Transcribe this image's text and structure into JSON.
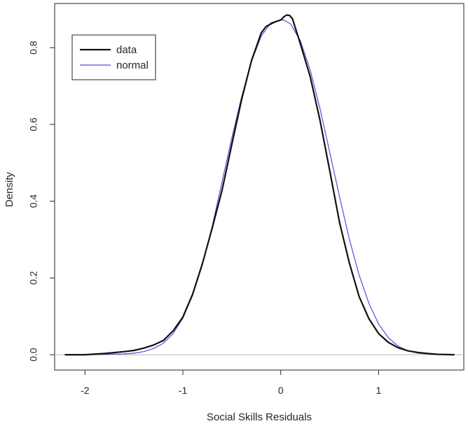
{
  "chart_data": {
    "type": "line",
    "title": "",
    "xlabel": "Social Skills Residuals",
    "ylabel": "Density",
    "xlim": [
      -2.31,
      1.87
    ],
    "ylim": [
      -0.04,
      0.915
    ],
    "x_ticks": [
      -2,
      -1,
      0,
      1
    ],
    "y_ticks": [
      0.0,
      0.2,
      0.4,
      0.6,
      0.8
    ],
    "x_tick_labels": [
      "-2",
      "-1",
      "0",
      "1"
    ],
    "y_tick_labels": [
      "0.0",
      "0.2",
      "0.4",
      "0.6",
      "0.8"
    ],
    "grid": false,
    "baseline": {
      "y": 0,
      "color": "#bdbdbd"
    },
    "legend": {
      "position": "top-left",
      "entries": [
        "data",
        "normal"
      ]
    },
    "series": [
      {
        "name": "data",
        "color": "#111111",
        "x": [
          -2.2,
          -2.0,
          -1.8,
          -1.6,
          -1.5,
          -1.4,
          -1.3,
          -1.2,
          -1.1,
          -1.0,
          -0.9,
          -0.8,
          -0.7,
          -0.6,
          -0.5,
          -0.4,
          -0.3,
          -0.2,
          -0.15,
          -0.1,
          -0.05,
          0.0,
          0.03,
          0.06,
          0.09,
          0.12,
          0.2,
          0.3,
          0.4,
          0.5,
          0.6,
          0.7,
          0.8,
          0.9,
          1.0,
          1.1,
          1.2,
          1.3,
          1.4,
          1.5,
          1.6,
          1.77
        ],
        "y": [
          0.0,
          0.0,
          0.003,
          0.008,
          0.011,
          0.017,
          0.025,
          0.037,
          0.062,
          0.098,
          0.158,
          0.238,
          0.33,
          0.428,
          0.548,
          0.665,
          0.765,
          0.838,
          0.855,
          0.862,
          0.868,
          0.872,
          0.88,
          0.885,
          0.884,
          0.875,
          0.81,
          0.725,
          0.612,
          0.48,
          0.345,
          0.24,
          0.152,
          0.094,
          0.055,
          0.032,
          0.018,
          0.01,
          0.006,
          0.003,
          0.001,
          0.0
        ]
      },
      {
        "name": "normal",
        "color": "#5050d8",
        "x": [
          -2.2,
          -2.0,
          -1.8,
          -1.6,
          -1.5,
          -1.4,
          -1.3,
          -1.2,
          -1.1,
          -1.0,
          -0.9,
          -0.8,
          -0.7,
          -0.6,
          -0.5,
          -0.4,
          -0.3,
          -0.2,
          -0.1,
          0.0,
          0.03,
          0.1,
          0.2,
          0.3,
          0.4,
          0.5,
          0.6,
          0.7,
          0.8,
          0.9,
          1.0,
          1.1,
          1.2,
          1.3,
          1.4,
          1.5,
          1.6,
          1.77
        ],
        "y": [
          0.0,
          0.0,
          0.001,
          0.002,
          0.004,
          0.008,
          0.016,
          0.03,
          0.055,
          0.095,
          0.155,
          0.235,
          0.335,
          0.45,
          0.565,
          0.672,
          0.763,
          0.83,
          0.865,
          0.872,
          0.872,
          0.862,
          0.818,
          0.742,
          0.642,
          0.528,
          0.412,
          0.302,
          0.208,
          0.134,
          0.08,
          0.044,
          0.022,
          0.01,
          0.004,
          0.002,
          0.001,
          0.0
        ]
      }
    ]
  }
}
